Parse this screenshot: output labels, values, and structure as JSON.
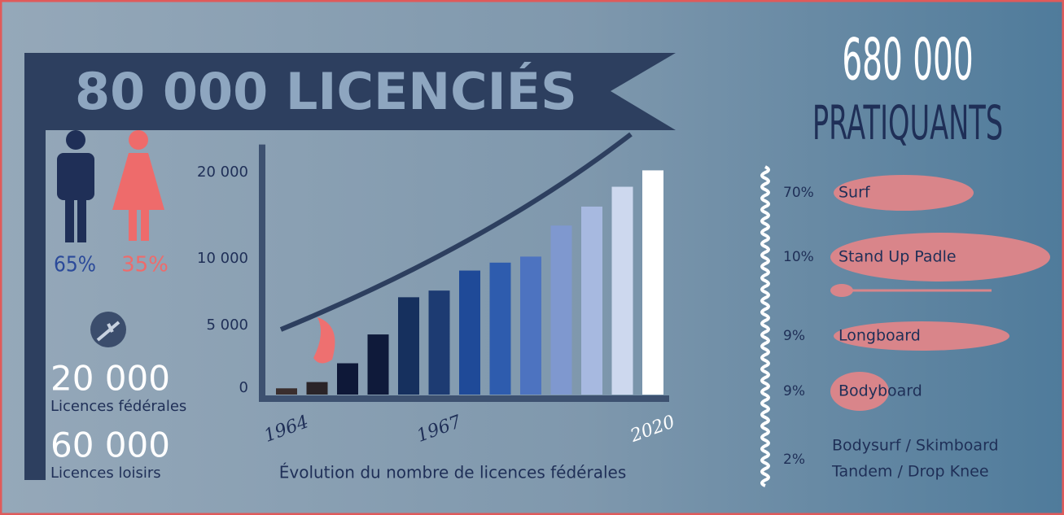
{
  "banner": {
    "title": "80 000 LICENCIÉS"
  },
  "gender": {
    "male": "65%",
    "female": "35%"
  },
  "licences": [
    {
      "number": "20 000",
      "label": "Licences fédérales"
    },
    {
      "number": "60 000",
      "label": "Licences loisirs"
    }
  ],
  "chart": {
    "type": "bar",
    "categories": [
      "1964",
      null,
      null,
      null,
      null,
      "1967",
      null,
      null,
      null,
      null,
      null,
      null,
      "2020"
    ],
    "values": [
      500,
      1000,
      2500,
      4800,
      7600,
      8100,
      9600,
      10300,
      11000,
      14600,
      16800,
      19100,
      21000
    ],
    "colors": [
      "#3a2e2e",
      "#2a2428",
      "#0e1838",
      "#0f1a3a",
      "#16305e",
      "#1d3b72",
      "#1f4a98",
      "#2e5cae",
      "#4d73c0",
      "#7f98cf",
      "#a7b9e0",
      "#cdd8ee",
      "#ffffff"
    ],
    "ylim": [
      0,
      24000
    ],
    "yticks": [
      0,
      {
        "value": 5000,
        "label": "5 000"
      },
      {
        "value": 10000,
        "label": "10 000"
      },
      {
        "value": 20000,
        "label": "20 000"
      }
    ],
    "xlabel": "Évolution du nombre de licences fédérales"
  },
  "practitioners": {
    "count": "680 000",
    "label": "PRATIQUANTS",
    "items": [
      {
        "percent": "70%",
        "label": "Surf"
      },
      {
        "percent": "10%",
        "label": "Stand Up Padle"
      },
      {
        "percent": "9%",
        "label": "Longboard"
      },
      {
        "percent": "9%",
        "label": "Bodyboard"
      },
      {
        "percent": "2%",
        "lines": [
          "Bodysurf / Skimboard",
          "Tandem / Drop Knee"
        ]
      }
    ]
  }
}
